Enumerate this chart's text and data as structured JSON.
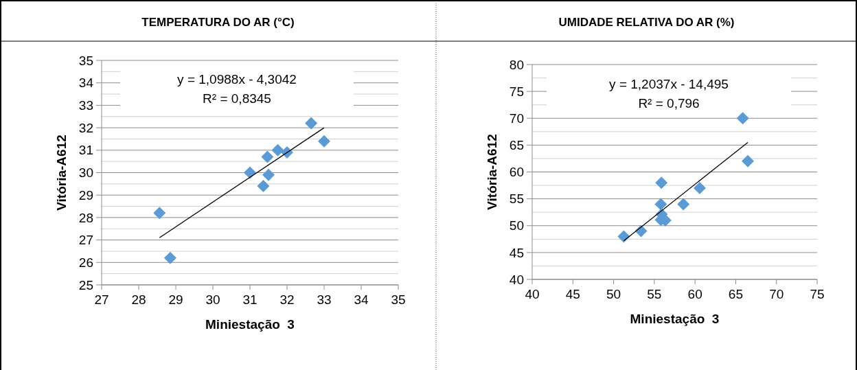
{
  "chart_data": [
    {
      "type": "scatter",
      "title": "TEMPERATURA DO AR (°C)",
      "xlabel": "Miniestação  3",
      "ylabel": "Vitória-A612",
      "annotations": [
        "y = 1,0988x - 4,3042",
        "R² = 0,8345"
      ],
      "grid": "y",
      "marker": "diamond",
      "xlim": [
        27,
        35
      ],
      "xticks": [
        27,
        28,
        29,
        30,
        31,
        32,
        33,
        34,
        35
      ],
      "ylim": [
        25,
        35
      ],
      "yticks": [
        25,
        {
          "value": 25.5,
          "label": null
        },
        26,
        {
          "value": 26.5,
          "label": null
        },
        27,
        {
          "value": 27.5,
          "label": null
        },
        28,
        {
          "value": 28.5,
          "label": null
        },
        29,
        {
          "value": 29.5,
          "label": null
        },
        30,
        {
          "value": 30.5,
          "label": null
        },
        31,
        {
          "value": 31.5,
          "label": null
        },
        32,
        {
          "value": 32.5,
          "label": null
        },
        33,
        {
          "value": 33.5,
          "label": null
        },
        34,
        {
          "value": 34.5,
          "label": null
        },
        35
      ],
      "series": [
        {
          "color": "#5b9bd5",
          "x": [
            28.56,
            28.85,
            31.0,
            31.36,
            31.47,
            31.5,
            31.75,
            32.0,
            32.65,
            33.0
          ],
          "values": [
            28.2,
            26.2,
            30.0,
            29.4,
            30.7,
            29.9,
            31.0,
            30.9,
            32.2,
            31.4
          ]
        },
        {
          "type": "line",
          "color": "#000000",
          "marker": "none",
          "x": [
            28.56,
            33.0
          ],
          "values": [
            27.1,
            32.0
          ]
        }
      ]
    },
    {
      "type": "scatter",
      "title": "UMIDADE RELATIVA DO AR (%)",
      "xlabel": "Miniestação  3",
      "ylabel": "Vitória-A612",
      "annotations": [
        "y = 1,2037x - 14,495",
        "R² = 0,796"
      ],
      "grid": "y",
      "marker": "diamond",
      "xlim": [
        40,
        75
      ],
      "xticks": [
        40,
        45,
        50,
        55,
        60,
        65,
        70,
        75
      ],
      "ylim": [
        40,
        80
      ],
      "yticks": [
        40,
        {
          "value": 42.5,
          "label": null
        },
        45,
        {
          "value": 47.5,
          "label": null
        },
        50,
        {
          "value": 52.5,
          "label": null
        },
        55,
        {
          "value": 57.5,
          "label": null
        },
        60,
        {
          "value": 62.5,
          "label": null
        },
        65,
        {
          "value": 67.5,
          "label": null
        },
        70,
        {
          "value": 72.5,
          "label": null
        },
        75,
        {
          "value": 77.5,
          "label": null
        },
        80
      ],
      "series": [
        {
          "color": "#5b9bd5",
          "x": [
            51.25,
            53.37,
            55.87,
            55.8,
            55.9,
            55.8,
            56.35,
            58.57,
            60.57,
            65.86,
            66.48
          ],
          "values": [
            48.0,
            49.0,
            58.0,
            54.0,
            52.1,
            51.1,
            51.0,
            54.0,
            57.0,
            70.0,
            62.0
          ]
        },
        {
          "type": "line",
          "color": "#000000",
          "marker": "none",
          "x": [
            51.25,
            66.48
          ],
          "values": [
            47.2,
            65.5
          ]
        }
      ]
    }
  ]
}
